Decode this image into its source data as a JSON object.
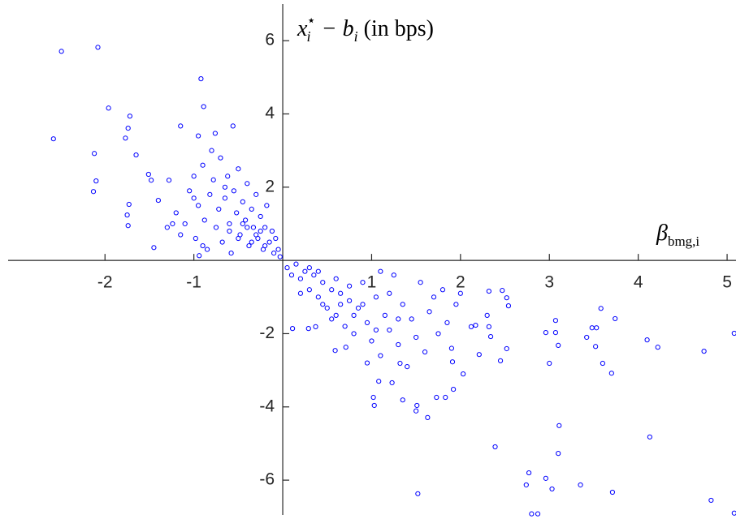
{
  "chart_data": {
    "type": "scatter",
    "y_label_parts": [
      "x",
      "i",
      "⋆",
      " − b",
      "i",
      " (in bps)"
    ],
    "x_label_parts": [
      "β",
      "bmg,i"
    ],
    "color": "#0000ff",
    "xlim": [
      -3.09,
      5.1
    ],
    "ylim": [
      -6.95,
      7.0
    ],
    "xticks": [
      -2,
      -1,
      1,
      2,
      3,
      4,
      5
    ],
    "yticks": [
      -6,
      -4,
      -2,
      2,
      4,
      6
    ],
    "x": [
      -2.49,
      -2.08,
      -2.58,
      -1.96,
      -1.72,
      -2.12,
      -1.74,
      -1.77,
      -1.65,
      -2.1,
      -2.13,
      -1.73,
      -1.75,
      -1.74,
      -1.51,
      -1.48,
      -1.4,
      -1.45,
      -0.92,
      -0.89,
      -1.15,
      -0.56,
      -0.76,
      -1.28,
      -1.24,
      -0.94,
      -1.2,
      -1.1,
      -1.05,
      -1.0,
      -0.98,
      -0.95,
      -0.9,
      -0.88,
      -0.85,
      -0.82,
      -0.8,
      -0.78,
      -0.75,
      -0.72,
      -0.7,
      -0.68,
      -0.65,
      -0.62,
      -0.6,
      -0.58,
      -0.55,
      -0.52,
      -0.5,
      -0.48,
      -0.45,
      -0.42,
      -0.4,
      -0.38,
      -0.35,
      -0.33,
      -0.3,
      -0.28,
      -0.25,
      -0.22,
      -0.2,
      -0.18,
      -0.15,
      -0.12,
      -0.1,
      -0.08,
      -0.05,
      -0.03,
      -0.6,
      -0.5,
      -0.4,
      -0.3,
      -0.35,
      -0.45,
      -0.25,
      -0.2,
      -1.15,
      -1.3,
      -1.0,
      -0.9,
      -0.95,
      -0.65,
      1.52,
      2.39,
      2.77,
      2.74,
      2.8,
      2.87,
      2.96,
      3.03,
      3.11,
      3.1,
      3.35,
      3.71,
      4.13,
      4.82,
      5.08,
      5.08,
      4.74,
      4.22,
      4.1,
      3.74,
      3.58,
      3.48,
      3.53,
      3.42,
      3.52,
      3.6,
      3.7,
      3.07,
      3.07,
      3.1,
      2.96,
      3.0,
      2.32,
      2.47,
      2.52,
      2.54,
      2.3,
      2.32,
      2.34,
      2.45,
      2.52,
      2.21,
      2.17,
      2.12,
      2.03,
      1.91,
      1.73,
      1.63,
      1.51,
      1.5,
      1.35,
      1.03,
      1.02,
      1.08,
      1.23,
      1.32,
      1.83,
      1.92,
      0.11,
      0.29,
      0.37,
      0.59,
      0.71,
      0.05,
      0.1,
      0.15,
      0.2,
      0.25,
      0.3,
      0.35,
      0.4,
      0.45,
      0.5,
      0.55,
      0.6,
      0.65,
      0.7,
      0.75,
      0.8,
      0.85,
      0.9,
      0.95,
      1.0,
      1.05,
      1.1,
      1.15,
      1.2,
      1.25,
      1.3,
      1.35,
      1.4,
      1.45,
      1.5,
      1.55,
      1.6,
      1.65,
      1.7,
      1.75,
      1.8,
      1.85,
      1.9,
      1.95,
      2.0,
      0.2,
      0.3,
      0.45,
      0.6,
      0.75,
      0.9,
      1.05,
      1.2,
      0.55,
      0.8,
      0.95,
      1.3,
      0.4,
      0.65,
      1.1
    ],
    "values": [
      5.71,
      5.82,
      3.32,
      4.16,
      3.94,
      2.92,
      3.61,
      3.34,
      2.88,
      2.17,
      1.88,
      1.53,
      1.24,
      0.95,
      2.35,
      2.19,
      1.64,
      0.35,
      4.96,
      4.2,
      3.67,
      3.67,
      3.47,
      2.19,
      1.0,
      0.13,
      1.3,
      1.0,
      1.9,
      2.3,
      0.6,
      1.5,
      2.6,
      1.1,
      0.3,
      1.8,
      3.0,
      2.2,
      0.9,
      1.4,
      2.8,
      0.5,
      1.7,
      2.3,
      1.0,
      0.2,
      1.9,
      1.3,
      2.5,
      0.7,
      1.6,
      1.1,
      2.1,
      0.4,
      1.4,
      0.9,
      1.8,
      0.6,
      1.2,
      0.3,
      0.9,
      1.5,
      0.5,
      0.8,
      0.2,
      0.6,
      0.3,
      0.1,
      0.8,
      0.6,
      0.9,
      0.7,
      0.5,
      1.0,
      0.8,
      0.4,
      0.7,
      0.9,
      1.7,
      0.4,
      3.4,
      2.0,
      -6.37,
      -5.09,
      -5.8,
      -6.13,
      -6.92,
      -6.92,
      -5.95,
      -6.24,
      -4.51,
      -5.27,
      -6.13,
      -6.33,
      -4.82,
      -6.55,
      -6.9,
      -1.99,
      -2.48,
      -2.37,
      -2.17,
      -1.59,
      -1.31,
      -1.84,
      -1.84,
      -2.1,
      -2.35,
      -2.81,
      -3.08,
      -1.64,
      -1.97,
      -2.32,
      -1.97,
      -2.81,
      -0.84,
      -0.82,
      -1.02,
      -1.24,
      -1.5,
      -1.81,
      -2.08,
      -2.74,
      -2.41,
      -2.57,
      -1.77,
      -1.81,
      -3.1,
      -2.77,
      -3.74,
      -4.29,
      -3.96,
      -4.11,
      -3.81,
      -3.96,
      -3.74,
      -3.3,
      -3.34,
      -2.81,
      -3.74,
      -3.52,
      -1.86,
      -1.86,
      -1.81,
      -2.46,
      -2.37,
      -0.2,
      -0.4,
      -0.1,
      -0.5,
      -0.3,
      -0.8,
      -0.4,
      -1.0,
      -0.6,
      -1.3,
      -0.8,
      -1.5,
      -0.9,
      -1.8,
      -1.1,
      -2.0,
      -1.3,
      -0.6,
      -1.7,
      -2.2,
      -1.0,
      -2.6,
      -1.5,
      -1.9,
      -0.4,
      -2.3,
      -1.2,
      -2.9,
      -1.6,
      -2.1,
      -0.6,
      -2.5,
      -1.4,
      -1.0,
      -2.0,
      -0.8,
      -1.7,
      -2.4,
      -1.2,
      -0.9,
      -0.9,
      -0.2,
      -1.2,
      -0.5,
      -0.7,
      -1.2,
      -1.9,
      -0.9,
      -1.6,
      -1.5,
      -2.8,
      -1.6,
      -0.3,
      -1.2,
      -0.3
    ]
  }
}
